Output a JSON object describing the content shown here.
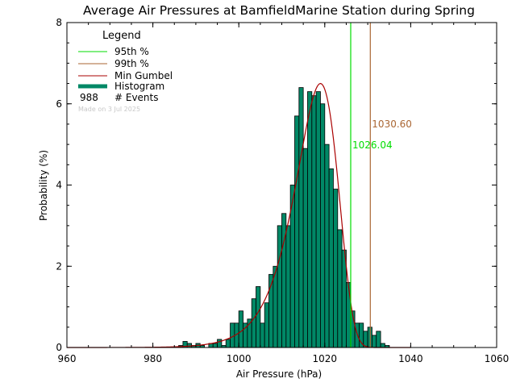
{
  "chart_data": {
    "type": "bar",
    "title": "Average Air Pressures at BamfieldMarine Station during Spring",
    "xlabel": "Air Pressure (hPa)",
    "ylabel": "Probability (%)",
    "xlim": [
      960,
      1060
    ],
    "ylim": [
      0,
      8
    ],
    "x_ticks": [
      "960",
      "980",
      "1000",
      "1020",
      "1040",
      "1060"
    ],
    "y_ticks": [
      "0",
      "2",
      "4",
      "6",
      "8"
    ],
    "bin_width": 1,
    "bins": {
      "x_start": [
        986,
        987,
        988,
        989,
        990,
        991,
        992,
        993,
        994,
        995,
        996,
        997,
        998,
        999,
        1000,
        1001,
        1002,
        1003,
        1004,
        1005,
        1006,
        1007,
        1008,
        1009,
        1010,
        1011,
        1012,
        1013,
        1014,
        1015,
        1016,
        1017,
        1018,
        1019,
        1020,
        1021,
        1022,
        1023,
        1024,
        1025,
        1026,
        1027,
        1028,
        1029,
        1030,
        1031,
        1032,
        1033,
        1034
      ],
      "values": [
        0.05,
        0.15,
        0.1,
        0.05,
        0.1,
        0.05,
        0.0,
        0.1,
        0.1,
        0.2,
        0.05,
        0.2,
        0.6,
        0.6,
        0.9,
        0.6,
        0.7,
        1.2,
        1.5,
        0.6,
        1.1,
        1.8,
        2.0,
        3.0,
        3.3,
        3.0,
        4.0,
        5.7,
        6.4,
        4.9,
        6.3,
        6.2,
        6.3,
        6.0,
        5.0,
        4.4,
        3.9,
        2.9,
        2.4,
        1.6,
        0.9,
        0.6,
        0.6,
        0.4,
        0.5,
        0.3,
        0.4,
        0.1,
        0.05
      ]
    },
    "series": [
      {
        "name": "Min Gumbel",
        "color": "#aa0000",
        "mode": 1019,
        "scale": 4.9,
        "peak": 6.5
      },
      {
        "name": "Histogram",
        "color": "#008866"
      }
    ],
    "percentiles": [
      {
        "name": "95th %",
        "value": 1026.04,
        "label": "1026.04",
        "color": "#00dd00"
      },
      {
        "name": "99th %",
        "value": 1030.6,
        "label": "1030.60",
        "color": "#aa6633"
      }
    ],
    "legend": {
      "title": "Legend",
      "items": [
        {
          "label": "95th %",
          "color": "#00dd00",
          "style": "line"
        },
        {
          "label": "99th %",
          "color": "#aa6633",
          "style": "line"
        },
        {
          "label": "Min Gumbel",
          "color": "#aa0000",
          "style": "line"
        },
        {
          "label": "Histogram",
          "color": "#008866",
          "style": "thick"
        }
      ],
      "events_count": "988",
      "events_label": "# Events",
      "made_on": "Made on 3 Jul 2025"
    },
    "grid": false
  }
}
